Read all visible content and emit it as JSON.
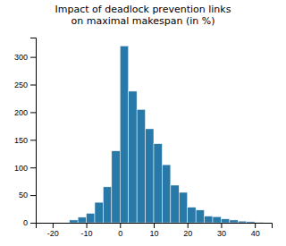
{
  "chart_data": {
    "type": "histogram",
    "title": "Impact of deadlock prevention links\non maximal makespan (in %)",
    "bins": [
      -15,
      -12.5,
      -10,
      -7.5,
      -5,
      -2.5,
      0,
      2.5,
      5,
      7.5,
      10,
      12.5,
      15,
      17.5,
      20,
      22.5,
      25,
      27.5,
      30,
      32.5,
      35,
      37.5,
      40,
      42.5
    ],
    "values": [
      5,
      10,
      17,
      37,
      65,
      130,
      320,
      238,
      205,
      170,
      143,
      105,
      68,
      55,
      28,
      23,
      12,
      11,
      7,
      5,
      3,
      2,
      1
    ],
    "color": "#2878a8",
    "xlim": [
      -25,
      45
    ],
    "ylim": [
      0,
      335
    ],
    "xticks": [
      -20,
      -10,
      0,
      10,
      20,
      30,
      40
    ],
    "yticks": [
      0,
      50,
      100,
      150,
      200,
      250,
      300
    ],
    "grid": false
  }
}
